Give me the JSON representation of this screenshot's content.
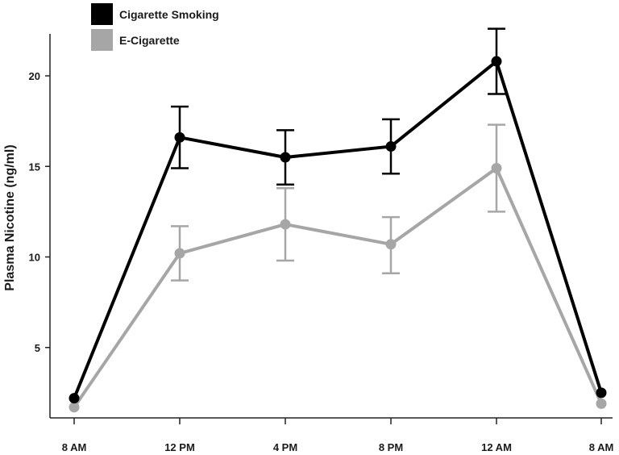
{
  "chart_data": {
    "type": "line",
    "categories": [
      "8 AM",
      "12 PM",
      "4 PM",
      "8 PM",
      "12 AM",
      "8 AM"
    ],
    "xlabel": "",
    "ylabel": "Plasma Nicotine (ng/ml)",
    "ylim": [
      0,
      22.5
    ],
    "yticks": [
      5,
      10,
      15,
      20
    ],
    "grid": false,
    "legend_position": "top-left",
    "series": [
      {
        "name": "Cigarette Smoking",
        "color": "#000000",
        "values": [
          2.2,
          16.6,
          15.5,
          16.1,
          20.8,
          2.5
        ],
        "error_upper": [
          null,
          18.3,
          17.0,
          17.6,
          22.6,
          null
        ],
        "error_lower": [
          null,
          14.9,
          14.0,
          14.6,
          19.0,
          null
        ]
      },
      {
        "name": "E-Cigarette",
        "color": "#a6a6a6",
        "values": [
          1.7,
          10.2,
          11.8,
          10.7,
          14.9,
          1.9
        ],
        "error_upper": [
          null,
          11.7,
          13.8,
          12.2,
          17.3,
          null
        ],
        "error_lower": [
          null,
          8.7,
          9.8,
          9.1,
          12.5,
          null
        ]
      }
    ]
  }
}
